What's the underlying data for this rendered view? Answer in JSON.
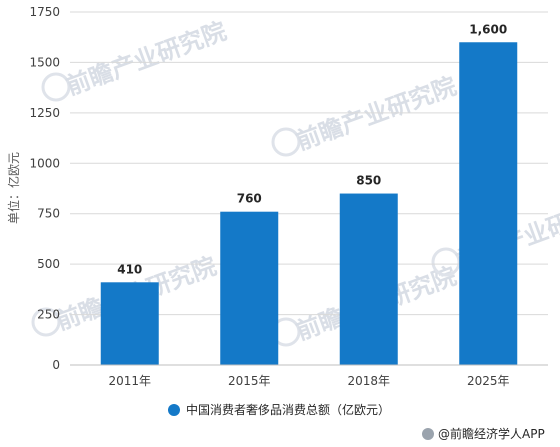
{
  "chart_data": {
    "type": "bar",
    "categories": [
      "2011年",
      "2015年",
      "2018年",
      "2025年"
    ],
    "series": [
      {
        "name": "中国消费者奢侈品消费总额（亿欧元）",
        "values": [
          410,
          760,
          850,
          1600
        ]
      }
    ],
    "data_labels": [
      "410",
      "760",
      "850",
      "1,600"
    ],
    "ylabel": "单位：亿欧元",
    "yticks": [
      0,
      250,
      500,
      750,
      1000,
      1250,
      1500,
      1750
    ],
    "ylim": [
      0,
      1750
    ],
    "grid": true,
    "legend_position": "bottom",
    "bar_color": "#1479c8"
  },
  "watermark": {
    "text": "前瞻产业研究院"
  },
  "credit": {
    "text": "@前瞻经济学人APP"
  }
}
